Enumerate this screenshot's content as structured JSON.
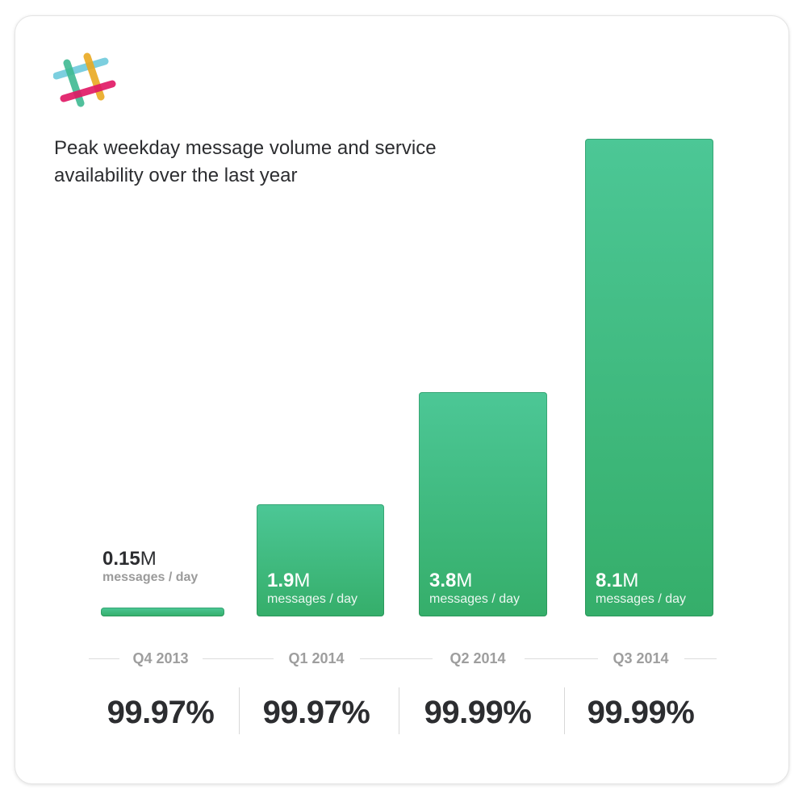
{
  "title": "Peak weekday message volume and service availability over the last year",
  "colors": {
    "bar_top": "#4cc796",
    "bar_bottom": "#35ae6a",
    "text_dark": "#2c2d30",
    "text_muted": "#9e9e9e",
    "logo_teal": "#6ecadc",
    "logo_yellow": "#e9a820",
    "logo_pink": "#e01563",
    "logo_green": "#3eb991"
  },
  "logo_icon": "slack-hash-logo-icon",
  "chart_data": {
    "type": "bar",
    "title": "Peak weekday message volume and service availability over the last year",
    "categories": [
      "Q4 2013",
      "Q1 2014",
      "Q2 2014",
      "Q3 2014"
    ],
    "series": [
      {
        "values": [
          0.15,
          1.9,
          3.8,
          8.1
        ]
      }
    ],
    "value_labels": [
      "0.15",
      "1.9",
      "3.8",
      "8.1"
    ],
    "unit_suffix": "M",
    "unit_caption": "messages / day",
    "availability": [
      "99.97%",
      "99.97%",
      "99.99%",
      "99.99%"
    ],
    "xlabel": "",
    "ylabel": "",
    "grid": false
  }
}
